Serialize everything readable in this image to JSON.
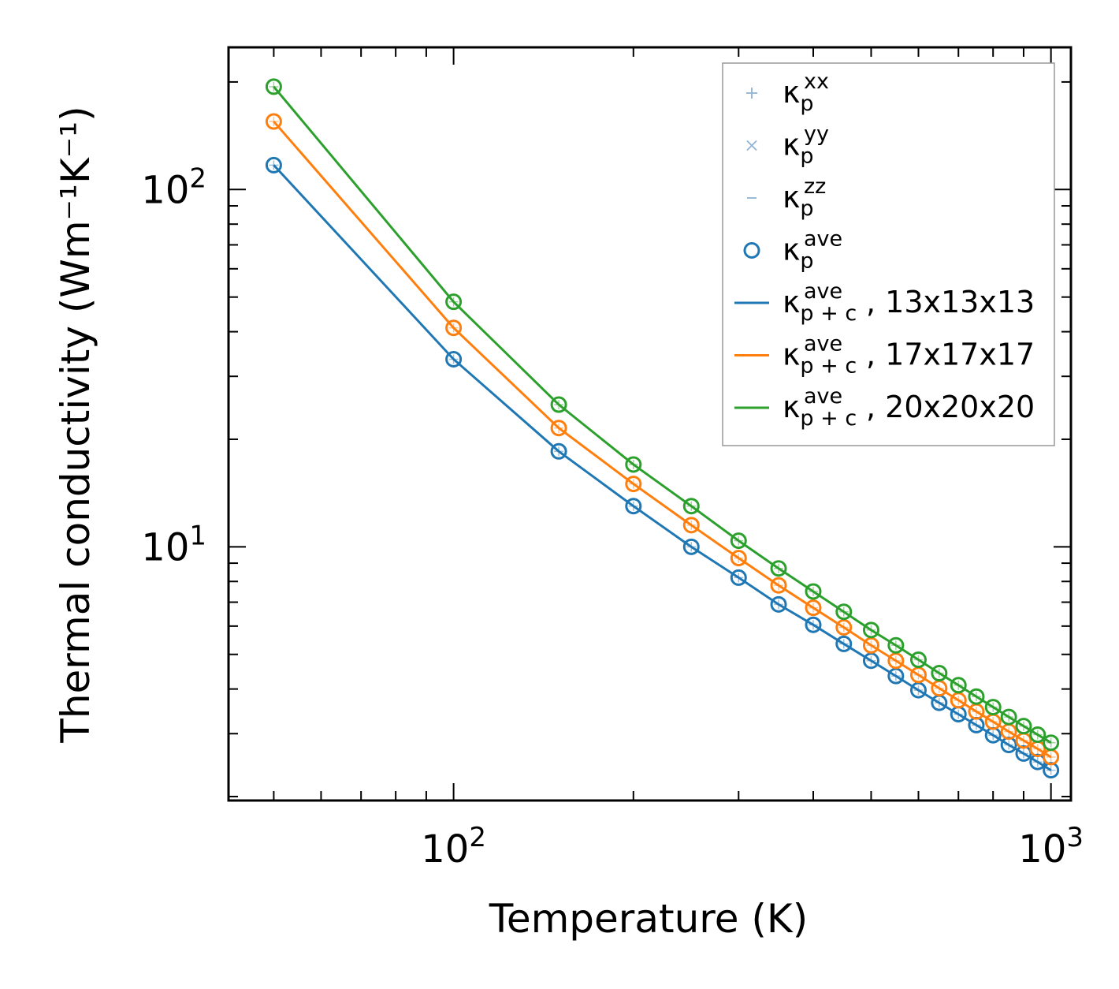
{
  "chart_data": {
    "type": "line",
    "xlabel": "Temperature (K)",
    "ylabel": "Thermal conductivity (Wm⁻¹K⁻¹)",
    "xscale": "log",
    "yscale": "log",
    "xlim": [
      42,
      1080
    ],
    "ylim": [
      1.95,
      250
    ],
    "x_major_ticks": [
      {
        "value": 100,
        "label": "10",
        "sup": "2"
      },
      {
        "value": 1000,
        "label": "10",
        "sup": "3"
      }
    ],
    "y_major_ticks": [
      {
        "value": 10,
        "label": "10",
        "sup": "1"
      },
      {
        "value": 100,
        "label": "10",
        "sup": "2"
      }
    ],
    "legend": {
      "position": "top-right",
      "entries": [
        {
          "kind": "plus",
          "symbol": "κ",
          "sub": "p",
          "sup": "xx",
          "text": ""
        },
        {
          "kind": "cross",
          "symbol": "κ",
          "sub": "p",
          "sup": "yy",
          "text": ""
        },
        {
          "kind": "dash",
          "symbol": "κ",
          "sub": "p",
          "sup": "zz",
          "text": ""
        },
        {
          "kind": "circle",
          "symbol": "κ",
          "sub": "p",
          "sup": "ave",
          "text": ""
        },
        {
          "kind": "line",
          "color": "#1f77b4",
          "symbol": "κ",
          "sub": "p + c",
          "sup": "ave",
          "text": ", 13x13x13"
        },
        {
          "kind": "line",
          "color": "#ff7f0e",
          "symbol": "κ",
          "sub": "p + c",
          "sup": "ave",
          "text": ", 17x17x17"
        },
        {
          "kind": "line",
          "color": "#2ca02c",
          "symbol": "κ",
          "sub": "p + c",
          "sup": "ave",
          "text": ", 20x20x20"
        }
      ]
    },
    "x": [
      50,
      100,
      150,
      200,
      250,
      300,
      350,
      400,
      450,
      500,
      550,
      600,
      650,
      700,
      750,
      800,
      850,
      900,
      950,
      1000
    ],
    "series": [
      {
        "name": "13x13x13",
        "color": "#1f77b4",
        "values": [
          117,
          33.5,
          18.5,
          13.0,
          10.0,
          8.2,
          6.9,
          6.05,
          5.35,
          4.8,
          4.35,
          3.97,
          3.66,
          3.4,
          3.17,
          2.97,
          2.79,
          2.64,
          2.5,
          2.37
        ]
      },
      {
        "name": "17x17x17",
        "color": "#ff7f0e",
        "values": [
          155,
          41,
          21.5,
          15.0,
          11.5,
          9.3,
          7.8,
          6.75,
          5.95,
          5.3,
          4.8,
          4.38,
          4.02,
          3.72,
          3.46,
          3.24,
          3.04,
          2.87,
          2.72,
          2.58
        ]
      },
      {
        "name": "20x20x20",
        "color": "#2ca02c",
        "values": [
          194,
          48.5,
          25.0,
          17.0,
          13.0,
          10.4,
          8.7,
          7.5,
          6.58,
          5.85,
          5.3,
          4.83,
          4.43,
          4.1,
          3.81,
          3.56,
          3.34,
          3.15,
          2.98,
          2.83
        ]
      }
    ]
  }
}
